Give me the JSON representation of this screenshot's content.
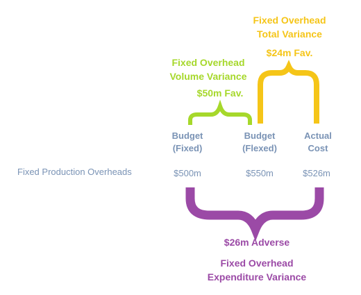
{
  "row_label": "Fixed Production Overheads",
  "columns": [
    {
      "head_line1": "Budget",
      "head_line2": "(Fixed)",
      "value": "$500m"
    },
    {
      "head_line1": "Budget",
      "head_line2": "(Flexed)",
      "value": "$550m"
    },
    {
      "head_line1": "Actual",
      "head_line2": "Cost",
      "value": "$526m"
    }
  ],
  "total_variance": {
    "title_line1": "Fixed Overhead",
    "title_line2": "Total Variance",
    "amount": "$24m Fav.",
    "color": "#f5c518"
  },
  "volume_variance": {
    "title_line1": "Fixed  Overhead",
    "title_line2": "Volume Variance",
    "amount": "$50m Fav.",
    "color": "#a6d82b"
  },
  "expenditure_variance": {
    "amount": "$26m Adverse",
    "title_line1": "Fixed Overhead",
    "title_line2": "Expenditure Variance",
    "color": "#9b4aa6"
  }
}
